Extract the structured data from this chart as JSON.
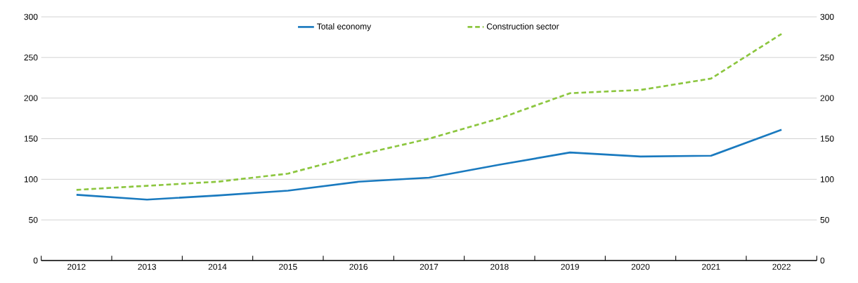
{
  "chart_data": {
    "type": "line",
    "categories": [
      "2012",
      "2013",
      "2014",
      "2015",
      "2016",
      "2017",
      "2018",
      "2019",
      "2020",
      "2021",
      "2022"
    ],
    "series": [
      {
        "name": "Total economy",
        "color": "#1a7abf",
        "line_style": "solid",
        "values": [
          81,
          75,
          80,
          86,
          97,
          102,
          118,
          133,
          128,
          129,
          161
        ]
      },
      {
        "name": "Construction sector",
        "color": "#8cc63f",
        "line_style": "dashed",
        "values": [
          87,
          92,
          97,
          107,
          130,
          150,
          175,
          206,
          210,
          224,
          279
        ]
      }
    ],
    "ylim": [
      0,
      300
    ],
    "yticks": [
      0,
      50,
      100,
      150,
      200,
      250,
      300
    ],
    "y2lim": [
      0,
      300
    ],
    "y2ticks": [
      0,
      50,
      100,
      150,
      200,
      250,
      300
    ],
    "grid": "y",
    "legend": "top",
    "marker": "none"
  }
}
